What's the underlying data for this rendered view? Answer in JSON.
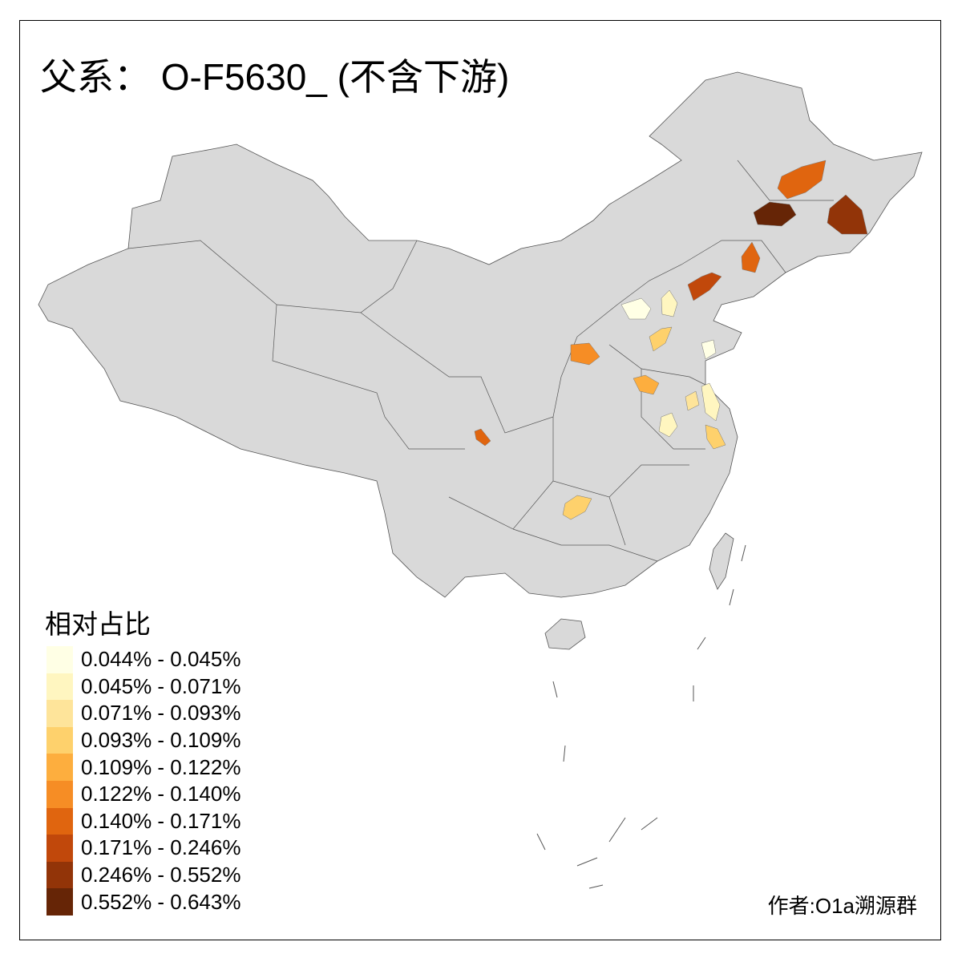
{
  "title": "父系： O-F5630_ (不含下游)",
  "legend": {
    "title": "相对占比",
    "items": [
      {
        "label": "0.044% - 0.045%",
        "color": "#FFFFE5"
      },
      {
        "label": "0.045% - 0.071%",
        "color": "#FFF6C0"
      },
      {
        "label": "0.071% - 0.093%",
        "color": "#FEE49A"
      },
      {
        "label": "0.093% - 0.109%",
        "color": "#FED16C"
      },
      {
        "label": "0.109% - 0.122%",
        "color": "#FDAE3E"
      },
      {
        "label": "0.122% - 0.140%",
        "color": "#F68D25"
      },
      {
        "label": "0.140% - 0.171%",
        "color": "#E0650F"
      },
      {
        "label": "0.171% - 0.246%",
        "color": "#C1480B"
      },
      {
        "label": "0.246% - 0.552%",
        "color": "#923408"
      },
      {
        "label": "0.552% - 0.643%",
        "color": "#662506"
      }
    ]
  },
  "author": "作者:O1a溯源群",
  "map": {
    "base_color": "#D9D9D9",
    "border_color": "#555555"
  }
}
